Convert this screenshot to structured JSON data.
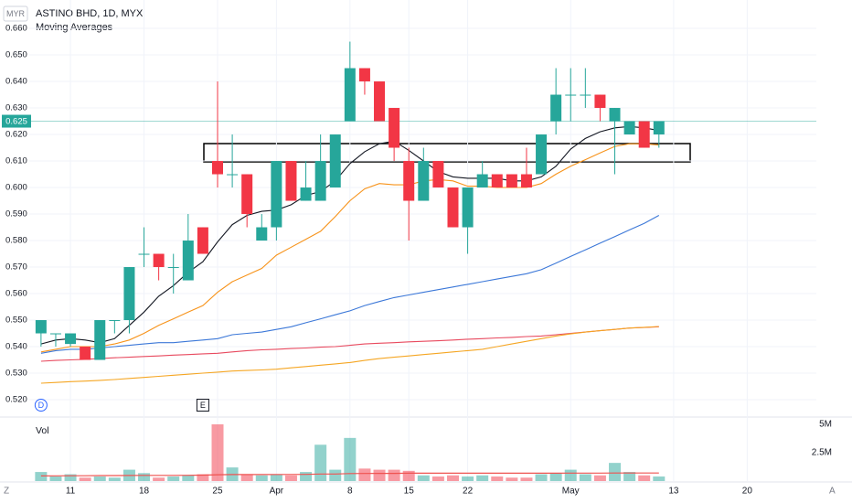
{
  "header": {
    "currency": "MYR",
    "symbol": "ASTINO BHD, 1D, MYX",
    "indicator": "Moving Averages"
  },
  "footer": {
    "left": "Z",
    "right": "A"
  },
  "chart_data": [
    {
      "type": "candlestick",
      "xlim": [
        -0.8,
        52.7
      ],
      "ylim": [
        0.5138,
        0.6707
      ],
      "grid": true,
      "yticks": [
        {
          "value": 0.52,
          "label": "0.520"
        },
        {
          "value": 0.53,
          "label": "0.530"
        },
        {
          "value": 0.54,
          "label": "0.540"
        },
        {
          "value": 0.55,
          "label": "0.550"
        },
        {
          "value": 0.56,
          "label": "0.560"
        },
        {
          "value": 0.57,
          "label": "0.570"
        },
        {
          "value": 0.58,
          "label": "0.580"
        },
        {
          "value": 0.59,
          "label": "0.590"
        },
        {
          "value": 0.6,
          "label": "0.600"
        },
        {
          "value": 0.61,
          "label": "0.610"
        },
        {
          "value": 0.62,
          "label": "0.620"
        },
        {
          "value": 0.63,
          "label": "0.630"
        },
        {
          "value": 0.64,
          "label": "0.640"
        },
        {
          "value": 0.65,
          "label": "0.650"
        },
        {
          "value": 0.66,
          "label": "0.660"
        }
      ],
      "xticks": [
        {
          "value": 2,
          "label": "11"
        },
        {
          "value": 7,
          "label": "18"
        },
        {
          "value": 12,
          "label": "25"
        },
        {
          "value": 16,
          "label": "Apr"
        },
        {
          "value": 21,
          "label": "8"
        },
        {
          "value": 25,
          "label": "15"
        },
        {
          "value": 29,
          "label": "22"
        },
        {
          "value": 36,
          "label": "May"
        },
        {
          "value": 43,
          "label": "13"
        },
        {
          "value": 48,
          "label": "20"
        }
      ],
      "up_color": "#26a69a",
      "down_color": "#f23645",
      "open": [
        0.545,
        0.545,
        0.541,
        0.54,
        0.535,
        0.55,
        0.55,
        0.575,
        0.575,
        0.57,
        0.565,
        0.585,
        0.61,
        0.605,
        0.605,
        0.58,
        0.585,
        0.61,
        0.595,
        0.595,
        0.6,
        0.625,
        0.645,
        0.64,
        0.63,
        0.61,
        0.595,
        0.61,
        0.6,
        0.585,
        0.6,
        0.605,
        0.605,
        0.605,
        0.605,
        0.625,
        0.635,
        0.635,
        0.635,
        0.625,
        0.62,
        0.625,
        0.62
      ],
      "high": [
        0.55,
        0.545,
        0.545,
        0.54,
        0.55,
        0.55,
        0.57,
        0.585,
        0.575,
        0.575,
        0.59,
        0.585,
        0.64,
        0.62,
        0.605,
        0.59,
        0.61,
        0.61,
        0.61,
        0.62,
        0.62,
        0.655,
        0.645,
        0.64,
        0.63,
        0.615,
        0.615,
        0.61,
        0.6,
        0.6,
        0.61,
        0.605,
        0.605,
        0.615,
        0.62,
        0.645,
        0.645,
        0.645,
        0.635,
        0.63,
        0.625,
        0.625,
        0.625
      ],
      "low": [
        0.54,
        0.54,
        0.54,
        0.535,
        0.535,
        0.545,
        0.545,
        0.57,
        0.565,
        0.56,
        0.565,
        0.575,
        0.6,
        0.6,
        0.585,
        0.58,
        0.58,
        0.595,
        0.595,
        0.595,
        0.6,
        0.625,
        0.635,
        0.625,
        0.61,
        0.58,
        0.595,
        0.6,
        0.585,
        0.575,
        0.6,
        0.6,
        0.6,
        0.6,
        0.605,
        0.62,
        0.625,
        0.63,
        0.625,
        0.605,
        0.62,
        0.615,
        0.615
      ],
      "close": [
        0.55,
        0.545,
        0.545,
        0.535,
        0.55,
        0.55,
        0.57,
        0.575,
        0.57,
        0.57,
        0.58,
        0.575,
        0.605,
        0.605,
        0.59,
        0.585,
        0.61,
        0.595,
        0.6,
        0.61,
        0.62,
        0.645,
        0.64,
        0.625,
        0.615,
        0.595,
        0.61,
        0.6,
        0.585,
        0.6,
        0.605,
        0.6,
        0.6,
        0.6,
        0.62,
        0.635,
        0.635,
        0.635,
        0.63,
        0.63,
        0.625,
        0.615,
        0.625
      ],
      "last_price": 0.625,
      "series": [
        {
          "color": "#131722",
          "values": [
            0.541,
            0.5425,
            0.543,
            0.5425,
            0.5415,
            0.543,
            0.548,
            0.553,
            0.559,
            0.563,
            0.568,
            0.572,
            0.5795,
            0.586,
            0.5895,
            0.591,
            0.5915,
            0.5935,
            0.597,
            0.5985,
            0.6025,
            0.609,
            0.6135,
            0.6165,
            0.6175,
            0.614,
            0.61,
            0.606,
            0.604,
            0.6035,
            0.6035,
            0.6035,
            0.6025,
            0.6025,
            0.604,
            0.608,
            0.6145,
            0.6185,
            0.621,
            0.6225,
            0.623,
            0.6225,
            0.6215
          ]
        },
        {
          "color": "#f7931a",
          "values": [
            0.538,
            0.539,
            0.54,
            0.54,
            0.54,
            0.541,
            0.5425,
            0.545,
            0.548,
            0.5505,
            0.553,
            0.5555,
            0.5605,
            0.5645,
            0.567,
            0.5695,
            0.5745,
            0.5775,
            0.5805,
            0.5835,
            0.589,
            0.595,
            0.5995,
            0.6015,
            0.601,
            0.601,
            0.6025,
            0.603,
            0.6025,
            0.6005,
            0.6005,
            0.6,
            0.6,
            0.6,
            0.6015,
            0.605,
            0.608,
            0.6105,
            0.613,
            0.6155,
            0.6165,
            0.6165,
            0.616
          ]
        },
        {
          "color": "#3c78d8",
          "values": [
            0.5375,
            0.5385,
            0.539,
            0.539,
            0.5395,
            0.54,
            0.5405,
            0.541,
            0.5415,
            0.5415,
            0.542,
            0.5425,
            0.543,
            0.5445,
            0.545,
            0.5455,
            0.5465,
            0.5475,
            0.549,
            0.5505,
            0.552,
            0.5535,
            0.5555,
            0.557,
            0.5585,
            0.5595,
            0.5605,
            0.5615,
            0.5625,
            0.5635,
            0.5645,
            0.5655,
            0.5665,
            0.5675,
            0.569,
            0.5715,
            0.574,
            0.5765,
            0.579,
            0.5815,
            0.584,
            0.5865,
            0.5895
          ]
        },
        {
          "color": "#e84a5f",
          "values": [
            0.5345,
            0.5348,
            0.535,
            0.5352,
            0.5355,
            0.5358,
            0.536,
            0.5363,
            0.5365,
            0.5368,
            0.537,
            0.5373,
            0.5375,
            0.538,
            0.5385,
            0.5388,
            0.539,
            0.5393,
            0.5395,
            0.5398,
            0.54,
            0.5405,
            0.541,
            0.5413,
            0.5415,
            0.5418,
            0.542,
            0.5422,
            0.5425,
            0.5428,
            0.543,
            0.5433,
            0.5435,
            0.5438,
            0.544,
            0.5445,
            0.545,
            0.5455,
            0.546,
            0.5465,
            0.547,
            0.5472,
            0.5475
          ]
        },
        {
          "color": "#f5a623",
          "values": [
            0.5262,
            0.5265,
            0.5268,
            0.527,
            0.5273,
            0.5276,
            0.528,
            0.5284,
            0.5288,
            0.5292,
            0.5296,
            0.53,
            0.5304,
            0.5308,
            0.531,
            0.5312,
            0.5315,
            0.532,
            0.5325,
            0.533,
            0.5335,
            0.534,
            0.5348,
            0.5355,
            0.536,
            0.5365,
            0.537,
            0.5375,
            0.538,
            0.5385,
            0.539,
            0.54,
            0.541,
            0.542,
            0.543,
            0.544,
            0.5448,
            0.5455,
            0.546,
            0.5465,
            0.547,
            0.5473,
            0.5476
          ]
        }
      ],
      "events": [
        {
          "label": "D",
          "x": 0
        },
        {
          "label": "E",
          "x": 11
        }
      ]
    },
    {
      "type": "bar",
      "title": "Vol",
      "ylim": [
        0,
        5400000
      ],
      "yticks": [
        {
          "value": 2500000,
          "label": "2.5M"
        },
        {
          "value": 5000000,
          "label": "5M"
        }
      ],
      "values": [
        800000,
        400000,
        600000,
        300000,
        400000,
        300000,
        1000000,
        700000,
        300000,
        400000,
        500000,
        600000,
        5000000,
        1200000,
        600000,
        500000,
        600000,
        500000,
        800000,
        3200000,
        1000000,
        3800000,
        1100000,
        1000000,
        1000000,
        900000,
        500000,
        400000,
        500000,
        400000,
        500000,
        400000,
        300000,
        300000,
        600000,
        700000,
        1000000,
        600000,
        500000,
        1600000,
        800000,
        500000,
        400000
      ],
      "series": [
        {
          "color": "#ef5350",
          "values": [
            450000,
            460000,
            470000,
            470000,
            480000,
            480000,
            490000,
            500000,
            500000,
            500000,
            510000,
            520000,
            560000,
            570000,
            570000,
            570000,
            580000,
            580000,
            590000,
            620000,
            620000,
            660000,
            670000,
            680000,
            680000,
            690000,
            690000,
            690000,
            690000,
            690000,
            690000,
            690000,
            690000,
            690000,
            690000,
            690000,
            700000,
            700000,
            700000,
            710000,
            710000,
            710000,
            710000
          ]
        }
      ]
    }
  ]
}
